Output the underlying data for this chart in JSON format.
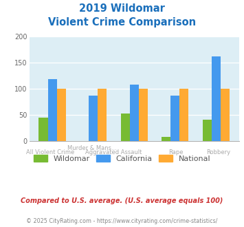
{
  "title_line1": "2019 Wildomar",
  "title_line2": "Violent Crime Comparison",
  "title_color": "#1a6fbb",
  "top_labels": [
    "",
    "Murder & Mans...",
    "",
    ""
  ],
  "bot_labels": [
    "All Violent Crime",
    "Aggravated Assault",
    "Rape",
    "Robbery"
  ],
  "wildomar": [
    44,
    0,
    52,
    8,
    40
  ],
  "california": [
    118,
    86,
    108,
    87,
    162
  ],
  "national": [
    100,
    100,
    100,
    100,
    100
  ],
  "wildomar_color": "#77bb33",
  "california_color": "#4499ee",
  "national_color": "#ffaa33",
  "ylim": [
    0,
    200
  ],
  "yticks": [
    0,
    50,
    100,
    150,
    200
  ],
  "plot_bg_color": "#ddeef5",
  "legend_labels": [
    "Wildomar",
    "California",
    "National"
  ],
  "footnote1": "Compared to U.S. average. (U.S. average equals 100)",
  "footnote2": "© 2025 CityRating.com - https://www.cityrating.com/crime-statistics/",
  "footnote1_color": "#cc3333",
  "footnote2_color": "#888888",
  "label_color": "#aaaaaa"
}
